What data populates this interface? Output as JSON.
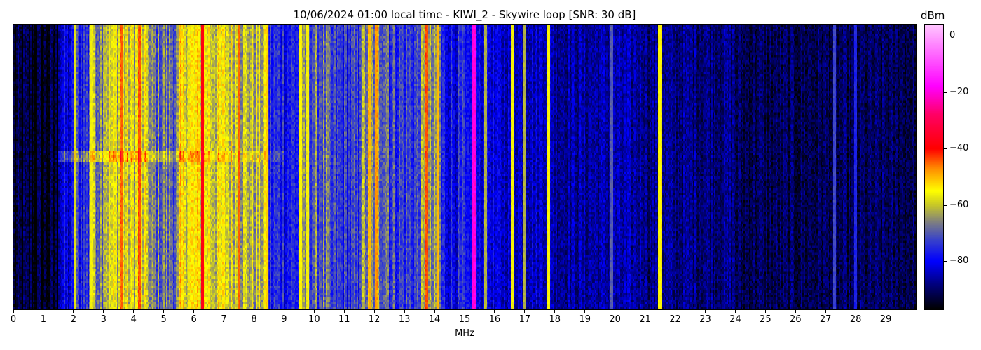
{
  "chart_data": {
    "type": "heatmap",
    "title": "10/06/2024 01:00 local time - KIWI_2 - Skywire loop [SNR: 30 dB]",
    "xlabel": "MHz",
    "ylabel": "",
    "xlim": [
      0,
      30
    ],
    "xticks": [
      0,
      1,
      2,
      3,
      4,
      5,
      6,
      7,
      8,
      9,
      10,
      11,
      12,
      13,
      14,
      15,
      16,
      17,
      18,
      19,
      20,
      21,
      22,
      23,
      24,
      25,
      26,
      27,
      28,
      29
    ],
    "colorbar": {
      "label": "dBm",
      "range": [
        -97,
        4
      ],
      "ticks": [
        0,
        -20,
        -40,
        -60,
        -80
      ],
      "colormap": [
        {
          "v": -97,
          "c": "#000000"
        },
        {
          "v": -88,
          "c": "#000080"
        },
        {
          "v": -80,
          "c": "#0000ff"
        },
        {
          "v": -72,
          "c": "#3c46c8"
        },
        {
          "v": -66,
          "c": "#808080"
        },
        {
          "v": -60,
          "c": "#c8c828"
        },
        {
          "v": -55,
          "c": "#ffff00"
        },
        {
          "v": -47,
          "c": "#ff8c00"
        },
        {
          "v": -40,
          "c": "#ff0000"
        },
        {
          "v": -28,
          "c": "#ff0064"
        },
        {
          "v": -18,
          "c": "#ff00ff"
        },
        {
          "v": 4,
          "c": "#ffc8ff"
        }
      ]
    },
    "rows": 120,
    "background_dbm": [
      {
        "from": 0,
        "to": 1.5,
        "level": -95
      },
      {
        "from": 1.5,
        "to": 2,
        "level": -82
      },
      {
        "from": 2,
        "to": 2.5,
        "level": -75
      },
      {
        "from": 2.5,
        "to": 3,
        "level": -65
      },
      {
        "from": 3,
        "to": 4.5,
        "level": -59
      },
      {
        "from": 4.5,
        "to": 5.5,
        "level": -68
      },
      {
        "from": 5.5,
        "to": 6.5,
        "level": -56
      },
      {
        "from": 6.5,
        "to": 7.5,
        "level": -58
      },
      {
        "from": 7.5,
        "to": 8.5,
        "level": -61
      },
      {
        "from": 8.5,
        "to": 9.5,
        "level": -76
      },
      {
        "from": 9.5,
        "to": 10.5,
        "level": -69
      },
      {
        "from": 10.5,
        "to": 11.5,
        "level": -75
      },
      {
        "from": 11.5,
        "to": 12.5,
        "level": -66
      },
      {
        "from": 12.5,
        "to": 13.5,
        "level": -73
      },
      {
        "from": 13.5,
        "to": 14.2,
        "level": -67
      },
      {
        "from": 14.2,
        "to": 15,
        "level": -78
      },
      {
        "from": 15,
        "to": 16,
        "level": -81
      },
      {
        "from": 16,
        "to": 18,
        "level": -83
      },
      {
        "from": 18,
        "to": 21,
        "level": -86
      },
      {
        "from": 21,
        "to": 24,
        "level": -88
      },
      {
        "from": 24,
        "to": 30,
        "level": -91
      }
    ],
    "carriers": [
      {
        "mhz": 2.05,
        "dbm": -58
      },
      {
        "mhz": 2.6,
        "dbm": -56
      },
      {
        "mhz": 3.6,
        "dbm": -45
      },
      {
        "mhz": 4.2,
        "dbm": -44
      },
      {
        "mhz": 6.3,
        "dbm": -38
      },
      {
        "mhz": 7.5,
        "dbm": -45
      },
      {
        "mhz": 8.45,
        "dbm": -52
      },
      {
        "mhz": 9.55,
        "dbm": -55
      },
      {
        "mhz": 9.8,
        "dbm": -56
      },
      {
        "mhz": 11.85,
        "dbm": -50
      },
      {
        "mhz": 12.05,
        "dbm": -48
      },
      {
        "mhz": 13.75,
        "dbm": -44
      },
      {
        "mhz": 14.1,
        "dbm": -50
      },
      {
        "mhz": 15.3,
        "dbm": -20
      },
      {
        "mhz": 15.7,
        "dbm": -62
      },
      {
        "mhz": 16.6,
        "dbm": -56
      },
      {
        "mhz": 17.0,
        "dbm": -62
      },
      {
        "mhz": 17.8,
        "dbm": -55
      },
      {
        "mhz": 19.9,
        "dbm": -70
      },
      {
        "mhz": 21.5,
        "dbm": -55
      },
      {
        "mhz": 27.3,
        "dbm": -72
      },
      {
        "mhz": 28.0,
        "dbm": -76
      }
    ],
    "time_bands": [
      {
        "row_from": 53,
        "row_to": 57,
        "mhz_from": 1.5,
        "mhz_to": 9,
        "boost_db": 10
      }
    ]
  }
}
